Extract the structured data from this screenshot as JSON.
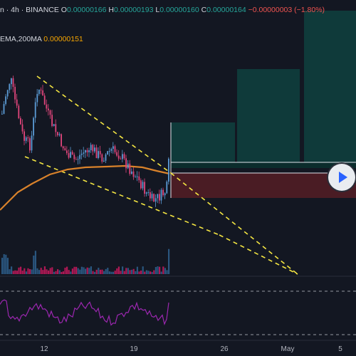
{
  "header": {
    "symbol": "n · 4h · BINANCE",
    "ohlc": [
      {
        "label": "O",
        "value": "0.00000166"
      },
      {
        "label": "H",
        "value": "0.00000193"
      },
      {
        "label": "L",
        "value": "0.00000160"
      },
      {
        "label": "C",
        "value": "0.00000164"
      }
    ],
    "change": "−0.00000003 (−1.80%)"
  },
  "indicator": {
    "label": "EMA,200MA",
    "value": "0.00000151",
    "color": "#f7a600"
  },
  "colors": {
    "background": "#131722",
    "up": "#26a69a",
    "down": "#ef5350",
    "ma": "#d9822b",
    "trendline": "#f5e642",
    "rsi": "#9c27b0",
    "volume_up": "#2d5d8a",
    "volume_down": "#c2185b",
    "target_zone": "#0f3a3a",
    "stop_zone": "#4a1c24"
  },
  "chart_data": {
    "type": "candlestick",
    "x_axis": {
      "tick_labels": [
        "12",
        "19",
        "26",
        "May",
        "5"
      ]
    },
    "series": [
      {
        "name": "price",
        "type": "candlestick"
      },
      {
        "name": "EMA,200MA",
        "type": "line"
      },
      {
        "name": "volume",
        "type": "bar"
      },
      {
        "name": "RSI",
        "type": "line"
      }
    ],
    "annotations": [
      "falling wedge trendlines",
      "long position target zone",
      "stop zone"
    ]
  },
  "controls": {
    "play_icon": "play-icon"
  }
}
